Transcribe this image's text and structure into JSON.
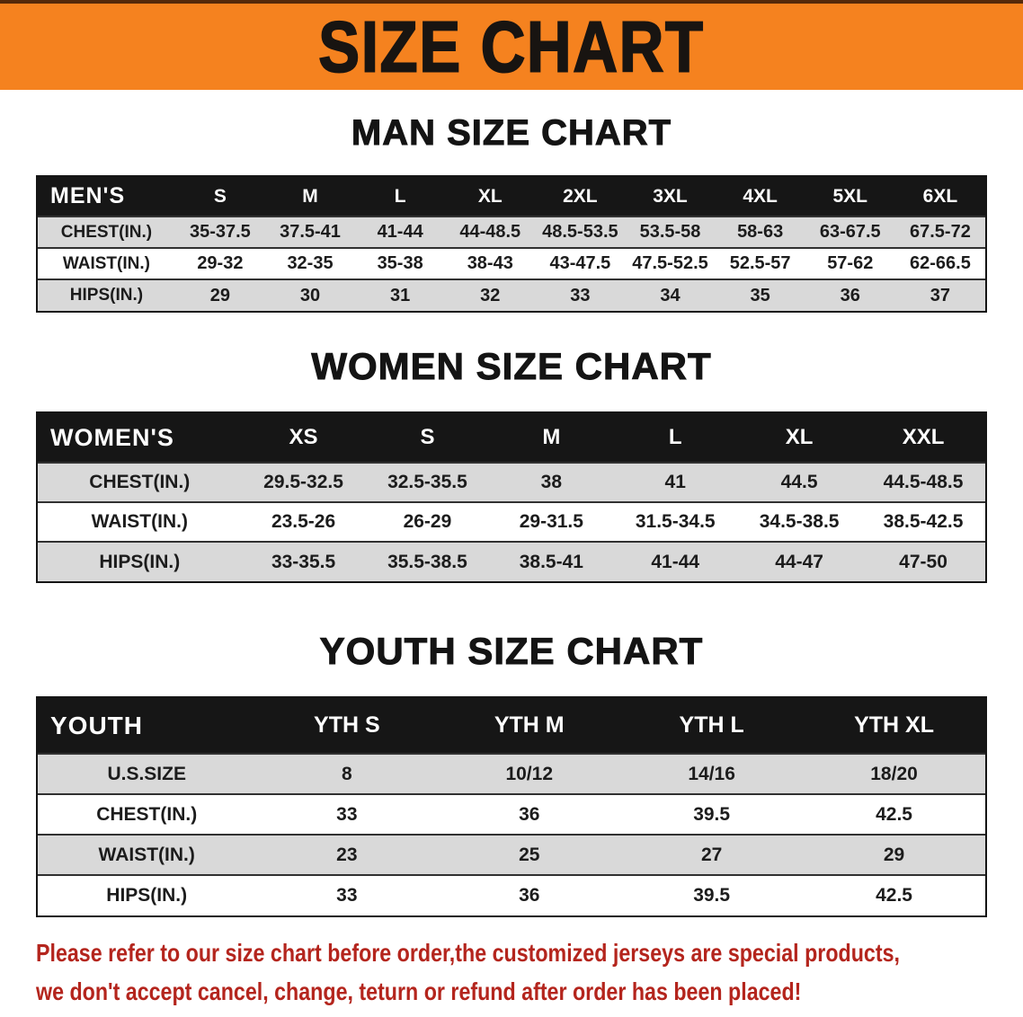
{
  "banner": {
    "title": "SIZE CHART"
  },
  "chart_data": [
    {
      "type": "table",
      "title": "MAN SIZE CHART",
      "corner": "MEN'S",
      "columns": [
        "S",
        "M",
        "L",
        "XL",
        "2XL",
        "3XL",
        "4XL",
        "5XL",
        "6XL"
      ],
      "rows": [
        {
          "label": "CHEST(IN.)",
          "values": [
            "35-37.5",
            "37.5-41",
            "41-44",
            "44-48.5",
            "48.5-53.5",
            "53.5-58",
            "58-63",
            "63-67.5",
            "67.5-72"
          ]
        },
        {
          "label": "WAIST(IN.)",
          "values": [
            "29-32",
            "32-35",
            "35-38",
            "38-43",
            "43-47.5",
            "47.5-52.5",
            "52.5-57",
            "57-62",
            "62-66.5"
          ]
        },
        {
          "label": "HIPS(IN.)",
          "values": [
            "29",
            "30",
            "31",
            "32",
            "33",
            "34",
            "35",
            "36",
            "37"
          ]
        }
      ]
    },
    {
      "type": "table",
      "title": "WOMEN SIZE CHART",
      "corner": "WOMEN'S",
      "columns": [
        "XS",
        "S",
        "M",
        "L",
        "XL",
        "XXL"
      ],
      "rows": [
        {
          "label": "CHEST(IN.)",
          "values": [
            "29.5-32.5",
            "32.5-35.5",
            "38",
            "41",
            "44.5",
            "44.5-48.5"
          ]
        },
        {
          "label": "WAIST(IN.)",
          "values": [
            "23.5-26",
            "26-29",
            "29-31.5",
            "31.5-34.5",
            "34.5-38.5",
            "38.5-42.5"
          ]
        },
        {
          "label": "HIPS(IN.)",
          "values": [
            "33-35.5",
            "35.5-38.5",
            "38.5-41",
            "41-44",
            "44-47",
            "47-50"
          ]
        }
      ]
    },
    {
      "type": "table",
      "title": "YOUTH SIZE CHART",
      "corner": "YOUTH",
      "columns": [
        "YTH S",
        "YTH M",
        "YTH L",
        "YTH XL"
      ],
      "rows": [
        {
          "label": "U.S.SIZE",
          "values": [
            "8",
            "10/12",
            "14/16",
            "18/20"
          ]
        },
        {
          "label": "CHEST(IN.)",
          "values": [
            "33",
            "36",
            "39.5",
            "42.5"
          ]
        },
        {
          "label": "WAIST(IN.)",
          "values": [
            "23",
            "25",
            "27",
            "29"
          ]
        },
        {
          "label": "HIPS(IN.)",
          "values": [
            "33",
            "36",
            "39.5",
            "42.5"
          ]
        }
      ]
    }
  ],
  "footnote": {
    "line1": "Please refer to our size chart before order,the customized jerseys are special products,",
    "line2": "we don't accept cancel, change, teturn or refund after order has been placed!"
  },
  "colors": {
    "banner_bg": "#f5821f",
    "banner_text": "#181411",
    "table_header_bg": "#161616",
    "table_header_text": "#ffffff",
    "row_alt_bg": "#d9d9d9",
    "row_bg": "#ffffff",
    "body_text": "#1c1c1c",
    "footnote_text": "#b4251d"
  }
}
